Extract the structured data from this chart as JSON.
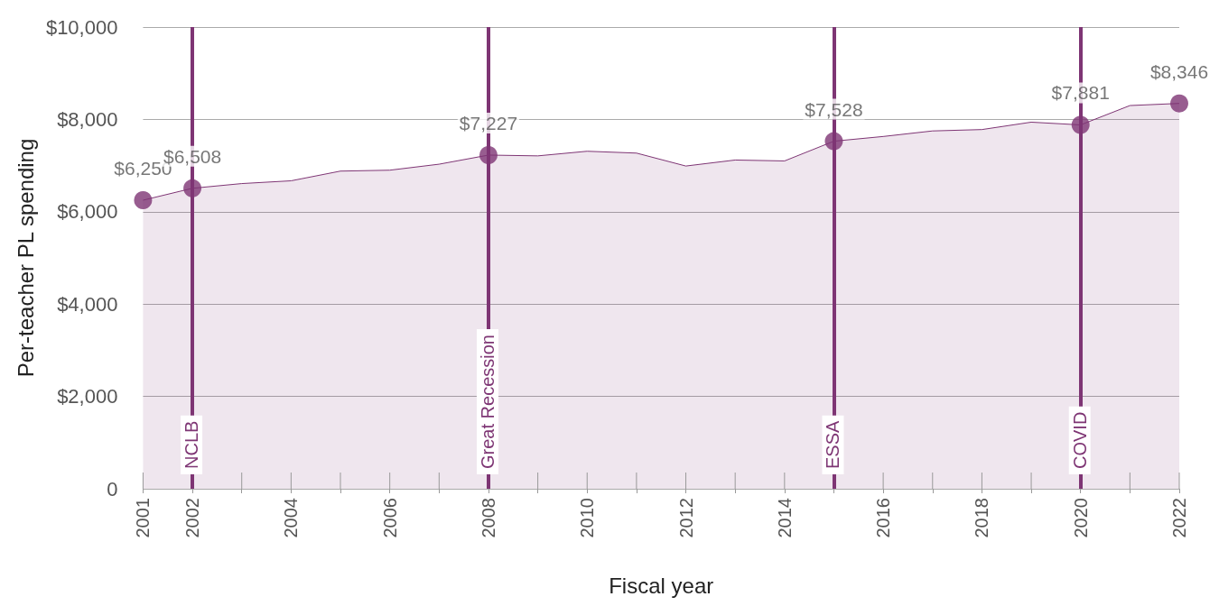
{
  "chart_data": {
    "type": "area",
    "xlabel": "Fiscal year",
    "ylabel": "Per-teacher PL spending",
    "x": [
      2001,
      2002,
      2003,
      2004,
      2005,
      2006,
      2007,
      2008,
      2009,
      2010,
      2011,
      2012,
      2013,
      2014,
      2015,
      2016,
      2017,
      2018,
      2019,
      2020,
      2021,
      2022
    ],
    "series": [
      {
        "color": "#7e3574",
        "marker": "none",
        "values": [
          6250,
          6508,
          6610,
          6670,
          6880,
          6900,
          7030,
          7227,
          7210,
          7310,
          7270,
          6990,
          7120,
          7100,
          7528,
          7630,
          7750,
          7780,
          7940,
          7881,
          8300,
          8346
        ]
      },
      {
        "type": "scatter",
        "color": "#7e3574",
        "marker": "circle",
        "x": [
          2001,
          2002,
          2008,
          2015,
          2020,
          2022
        ],
        "values": [
          6250,
          6508,
          7227,
          7528,
          7881,
          8346
        ],
        "value_labels": [
          "$6,250",
          "$6,508",
          "$7,227",
          "$7,528",
          "$7,881",
          "$8,346"
        ]
      }
    ],
    "xlim": [
      2001,
      2022
    ],
    "xticks": [
      2001,
      2002,
      {
        "value": 2003,
        "label": null
      },
      2004,
      {
        "value": 2005,
        "label": null
      },
      2006,
      {
        "value": 2007,
        "label": null
      },
      2008,
      {
        "value": 2009,
        "label": null
      },
      2010,
      {
        "value": 2011,
        "label": null
      },
      2012,
      {
        "value": 2013,
        "label": null
      },
      2014,
      {
        "value": 2015,
        "label": null
      },
      2016,
      {
        "value": 2017,
        "label": null
      },
      2018,
      {
        "value": 2019,
        "label": null
      },
      2020,
      {
        "value": 2021,
        "label": null
      },
      2022
    ],
    "ylim": [
      0,
      10000
    ],
    "yticks": [
      0,
      {
        "value": 2000,
        "label": "$2,000"
      },
      {
        "value": 4000,
        "label": "$4,000"
      },
      {
        "value": 6000,
        "label": "$6,000"
      },
      {
        "value": 8000,
        "label": "$8,000"
      },
      {
        "value": 10000,
        "label": "$10,000"
      }
    ],
    "grid": "y",
    "ref_lines": [
      {
        "axis": "x",
        "value": 2002,
        "label": "NCLB",
        "color": "#7e3574"
      },
      {
        "axis": "x",
        "value": 2008,
        "label": "Great Recession",
        "color": "#7e3574"
      },
      {
        "axis": "x",
        "value": 2015,
        "label": "ESSA",
        "color": "#7e3574"
      },
      {
        "axis": "x",
        "value": 2020,
        "label": "COVID",
        "color": "#7e3574"
      }
    ]
  }
}
